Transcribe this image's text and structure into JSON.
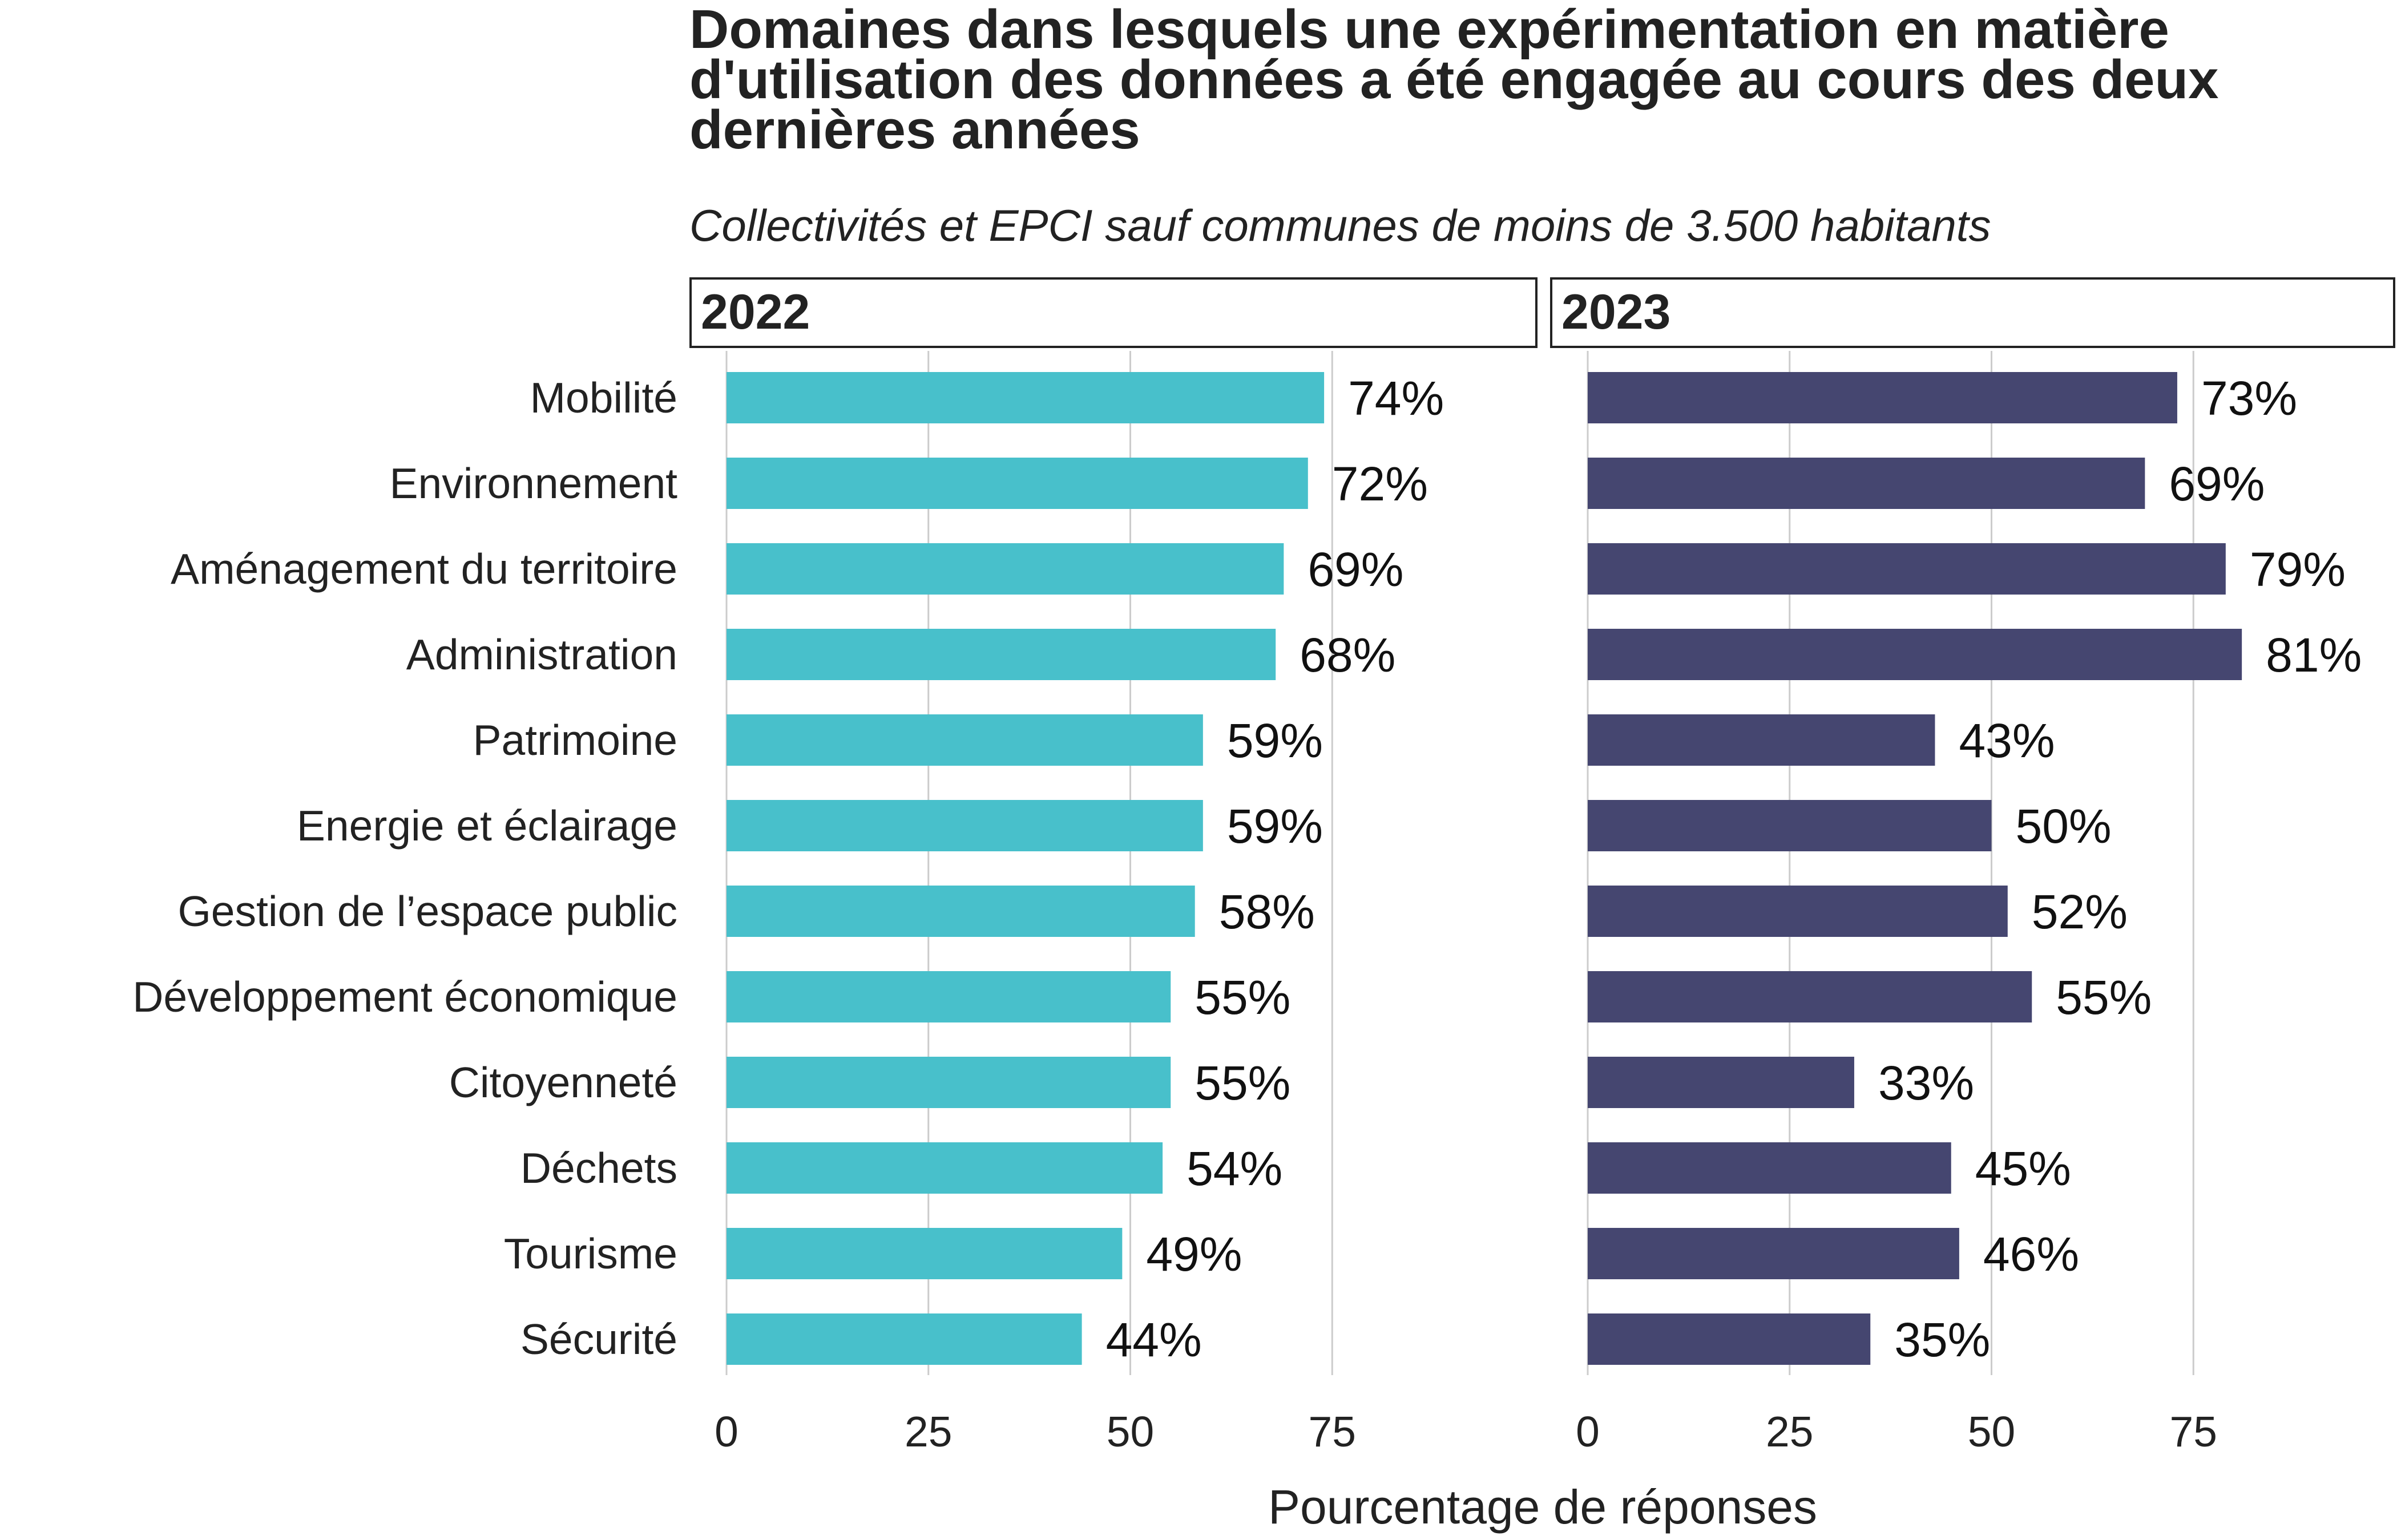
{
  "title": "Domaines dans lesquels une expérimentation en matière d'utilisation des données a été engagée au cours des deux dernières années",
  "subtitle": "Collectivités et EPCI sauf communes de moins de 3.500 habitants",
  "colors": {
    "2022": "#48c0cb",
    "2023": "#454670",
    "grid": "#cccccc",
    "text": "#222222"
  },
  "chart_data": {
    "type": "bar",
    "orientation": "horizontal",
    "categories": [
      "Mobilité",
      "Environnement",
      "Aménagement du territoire",
      "Administration",
      "Patrimoine",
      "Energie et éclairage",
      "Gestion de l’espace public",
      "Développement économique",
      "Citoyenneté",
      "Déchets",
      "Tourisme",
      "Sécurité"
    ],
    "panels": [
      {
        "name": "2022",
        "values": [
          74,
          72,
          69,
          68,
          59,
          59,
          58,
          55,
          55,
          54,
          49,
          44
        ],
        "labels": [
          "74%",
          "72%",
          "69%",
          "68%",
          "59%",
          "59%",
          "58%",
          "55%",
          "55%",
          "54%",
          "49%",
          "44%"
        ]
      },
      {
        "name": "2023",
        "values": [
          73,
          69,
          79,
          81,
          43,
          50,
          52,
          55,
          33,
          45,
          46,
          35
        ],
        "labels": [
          "73%",
          "69%",
          "79%",
          "81%",
          "43%",
          "50%",
          "52%",
          "55%",
          "33%",
          "45%",
          "46%",
          "35%"
        ]
      }
    ],
    "xlabel": "Pourcentage de réponses",
    "ylabel": "",
    "xlim": [
      0,
      100
    ],
    "xticks": [
      "0",
      "25",
      "50",
      "75"
    ],
    "xtick_values": [
      0,
      25,
      50,
      75
    ],
    "grid": true,
    "legend": "none (facet strips)"
  }
}
